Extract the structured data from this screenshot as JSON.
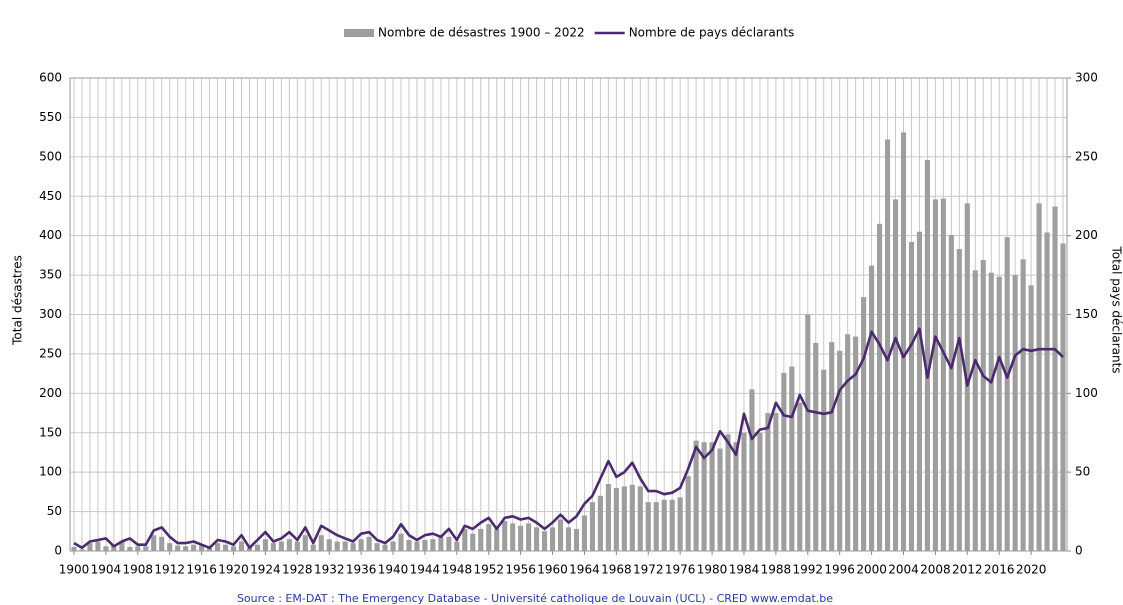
{
  "chart_data": {
    "type": "bar_line",
    "source": "Source : EM-DAT : The Emergency Database - Université catholique de Louvain (UCL) - CRED  www.emdat.be",
    "y_label": "Total désastres",
    "y2_label": "Total pays déclarants",
    "x": [
      1900,
      1901,
      1902,
      1903,
      1904,
      1905,
      1906,
      1907,
      1908,
      1909,
      1910,
      1911,
      1912,
      1913,
      1914,
      1915,
      1916,
      1917,
      1918,
      1919,
      1920,
      1921,
      1922,
      1923,
      1924,
      1925,
      1926,
      1927,
      1928,
      1929,
      1930,
      1931,
      1932,
      1933,
      1934,
      1935,
      1936,
      1937,
      1938,
      1939,
      1940,
      1941,
      1942,
      1943,
      1944,
      1945,
      1946,
      1947,
      1948,
      1949,
      1950,
      1951,
      1952,
      1953,
      1954,
      1955,
      1956,
      1957,
      1958,
      1959,
      1960,
      1961,
      1962,
      1963,
      1964,
      1965,
      1966,
      1967,
      1968,
      1969,
      1970,
      1971,
      1972,
      1973,
      1974,
      1975,
      1976,
      1977,
      1978,
      1979,
      1980,
      1981,
      1982,
      1983,
      1984,
      1985,
      1986,
      1987,
      1988,
      1989,
      1990,
      1991,
      1992,
      1993,
      1994,
      1995,
      1996,
      1997,
      1998,
      1999,
      2000,
      2001,
      2002,
      2003,
      2004,
      2005,
      2006,
      2007,
      2008,
      2009,
      2010,
      2011,
      2012,
      2013,
      2014,
      2015,
      2016,
      2017,
      2018,
      2019,
      2020,
      2021,
      2022,
      2023,
      2024
    ],
    "series": [
      {
        "name": "Nombre de désastres 1900 – 2022",
        "kind": "bar",
        "axis": "y",
        "color": "#9e9e9e",
        "values": [
          5,
          2,
          10,
          12,
          6,
          8,
          12,
          5,
          6,
          6,
          20,
          18,
          10,
          7,
          6,
          8,
          7,
          4,
          10,
          8,
          6,
          12,
          4,
          8,
          15,
          10,
          12,
          15,
          12,
          20,
          8,
          20,
          15,
          12,
          12,
          10,
          15,
          18,
          10,
          8,
          12,
          22,
          14,
          12,
          14,
          15,
          18,
          18,
          12,
          28,
          22,
          28,
          34,
          28,
          38,
          35,
          32,
          35,
          30,
          25,
          30,
          40,
          30,
          28,
          45,
          62,
          70,
          85,
          80,
          82,
          84,
          82,
          62,
          62,
          65,
          65,
          68,
          95,
          140,
          138,
          138,
          130,
          148,
          138,
          150,
          205,
          150,
          175,
          175,
          226,
          234,
          188,
          300,
          264,
          230,
          265,
          254,
          275,
          272,
          322,
          362,
          415,
          522,
          446,
          531,
          392,
          405,
          496,
          446,
          447,
          401,
          383,
          441,
          356,
          369,
          353,
          348,
          398,
          350,
          370,
          337,
          441,
          404,
          437,
          390
        ]
      },
      {
        "name": "Nombre de pays déclarants",
        "kind": "line",
        "axis": "y2",
        "color": "#4b2a6e",
        "values": [
          5,
          2,
          6,
          7,
          8,
          3,
          6,
          8,
          4,
          4,
          13,
          15,
          9,
          5,
          5,
          6,
          4,
          2,
          7,
          6,
          4,
          10,
          2,
          7,
          12,
          6,
          8,
          12,
          7,
          15,
          5,
          16,
          13,
          10,
          8,
          6,
          11,
          12,
          7,
          5,
          9,
          17,
          10,
          7,
          10,
          11,
          9,
          14,
          7,
          16,
          14,
          18,
          21,
          14,
          21,
          22,
          20,
          21,
          18,
          14,
          18,
          23,
          18,
          22,
          30,
          35,
          46,
          57,
          47,
          50,
          56,
          46,
          38,
          38,
          36,
          37,
          40,
          52,
          66,
          59,
          64,
          76,
          69,
          61,
          87,
          71,
          77,
          78,
          94,
          86,
          85,
          99,
          89,
          88,
          87,
          88,
          102,
          108,
          112,
          122,
          139,
          131,
          121,
          135,
          123,
          131,
          141,
          110,
          136,
          126,
          116,
          135,
          105,
          121,
          111,
          107,
          123,
          110,
          124,
          128,
          127,
          128,
          128,
          128,
          123
        ]
      }
    ],
    "xlim": [
      1899.5,
      2024.5
    ],
    "xticks": [
      1900,
      1904,
      1908,
      1912,
      1916,
      1920,
      1924,
      1928,
      1932,
      1936,
      1940,
      1944,
      1948,
      1952,
      1956,
      1960,
      1964,
      1968,
      1972,
      1976,
      1980,
      1984,
      1988,
      1992,
      1996,
      2000,
      2004,
      2008,
      2012,
      2016,
      2020
    ],
    "ylim": [
      0,
      600
    ],
    "yticks": [
      0,
      50,
      100,
      150,
      200,
      250,
      300,
      350,
      400,
      450,
      500,
      550,
      600
    ],
    "y2lim": [
      0,
      300
    ],
    "y2ticks": [
      0,
      50,
      100,
      150,
      200,
      250,
      300
    ],
    "grid": true,
    "legend": "top"
  }
}
